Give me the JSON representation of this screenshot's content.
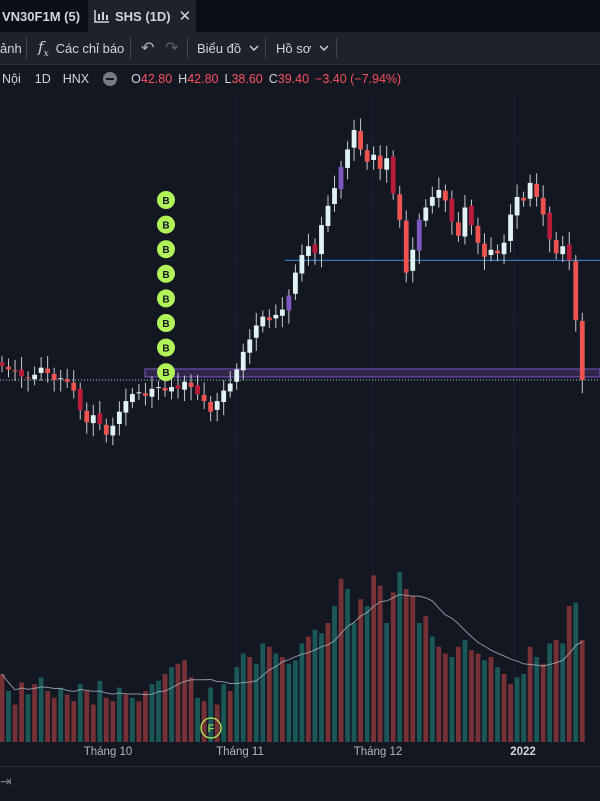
{
  "tabs": [
    {
      "label": "VN30F1M (5)",
      "active": false
    },
    {
      "label": "SHS (1D)",
      "active": true
    }
  ],
  "toolbar": {
    "alert_label": "ảnh",
    "indicators_label": "Các chỉ báo",
    "chart_type_label": "Biểu đồ",
    "profile_label": "Hồ sơ"
  },
  "legend": {
    "exchange_suffix": "Nội",
    "interval": "1D",
    "exchange": "HNX",
    "open_key": "O",
    "open": "42.80",
    "high_key": "H",
    "high": "42.80",
    "low_key": "L",
    "low": "38.60",
    "close_key": "C",
    "close": "39.40",
    "change": "−3.40 (−7.94%)"
  },
  "colors": {
    "up": "#26a69a",
    "down": "#ef5350",
    "purple": "#7e57c2",
    "signal": "#b2f35a",
    "background": "#131722"
  },
  "x_axis": {
    "labels": [
      "Tháng 10",
      "Tháng 11",
      "Tháng 12",
      "2022"
    ]
  },
  "signals": {
    "label": "B",
    "count": 8
  },
  "marker": {
    "label": "F"
  },
  "chart_data": {
    "type": "candlestick",
    "price_levels": {
      "support": 39.8,
      "resistance": 46.2,
      "last": 39.4
    },
    "volume_series": [
      40,
      30,
      22,
      35,
      28,
      34,
      38,
      30,
      26,
      32,
      28,
      24,
      34,
      30,
      22,
      36,
      26,
      24,
      32,
      28,
      26,
      24,
      30,
      34,
      36,
      40,
      44,
      46,
      48,
      38,
      26,
      24,
      32,
      22,
      34,
      30,
      44,
      52,
      50,
      46,
      58,
      56,
      52,
      50,
      46,
      48,
      58,
      62,
      66,
      64,
      70,
      80,
      96,
      90,
      70,
      84,
      80,
      98,
      92,
      70,
      88,
      100,
      90,
      86,
      70,
      74,
      62,
      56,
      52,
      50,
      56,
      60,
      54,
      52,
      48,
      50,
      44,
      40,
      34,
      38,
      40,
      56,
      50,
      46,
      58,
      60,
      58,
      80,
      82,
      60
    ],
    "volume_up": [
      false,
      true,
      false,
      false,
      true,
      false,
      true,
      false,
      false,
      true,
      false,
      false,
      true,
      false,
      false,
      true,
      false,
      false,
      true,
      false,
      true,
      false,
      false,
      true,
      true,
      false,
      true,
      false,
      false,
      false,
      true,
      false,
      true,
      false,
      true,
      false,
      true,
      true,
      false,
      true,
      true,
      false,
      true,
      false,
      true,
      true,
      true,
      false,
      true,
      true,
      false,
      true,
      false,
      true,
      true,
      false,
      true,
      false,
      false,
      true,
      false,
      true,
      false,
      false,
      true,
      false,
      true,
      false,
      false,
      true,
      false,
      true,
      false,
      false,
      true,
      false,
      true,
      false,
      false,
      true,
      true,
      false,
      true,
      false,
      true,
      false,
      true,
      false,
      true,
      false
    ]
  }
}
